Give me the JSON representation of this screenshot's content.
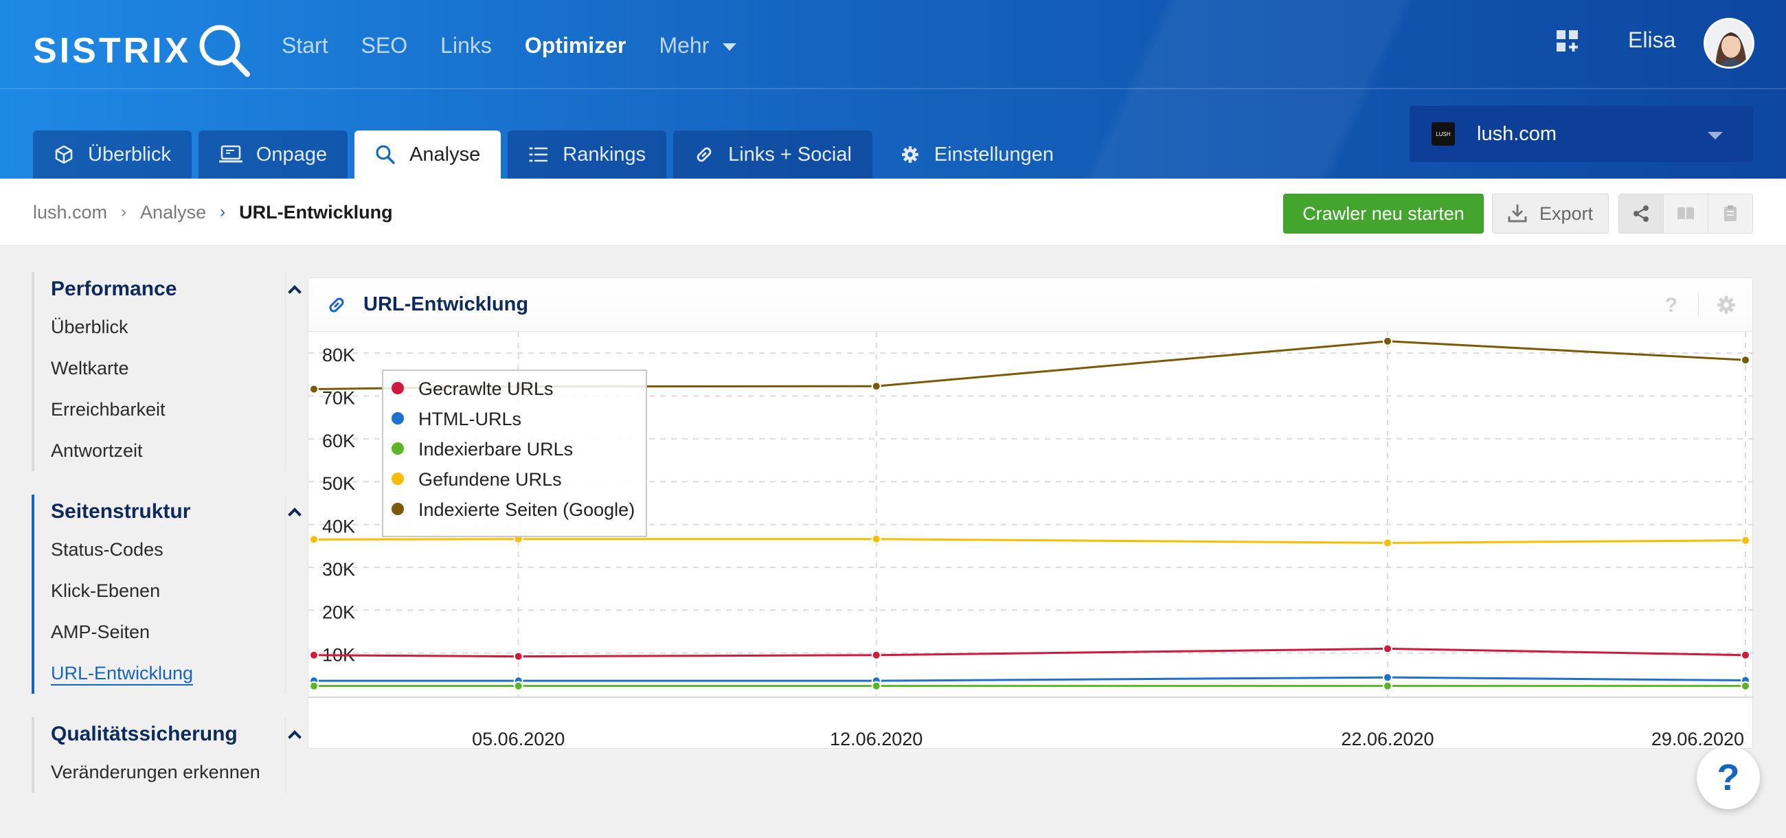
{
  "app": {
    "logo_text": "SISTRIX",
    "nav": [
      {
        "label": "Start",
        "active": false
      },
      {
        "label": "SEO",
        "active": false
      },
      {
        "label": "Links",
        "active": false
      },
      {
        "label": "Optimizer",
        "active": true
      },
      {
        "label": "Mehr",
        "active": false,
        "dropdown": true
      }
    ],
    "user": {
      "name": "Elisa"
    }
  },
  "tabs": [
    {
      "label": "Überblick",
      "icon": "cube-icon",
      "active": false
    },
    {
      "label": "Onpage",
      "icon": "monitor-icon",
      "active": false
    },
    {
      "label": "Analyse",
      "icon": "search-icon",
      "active": true
    },
    {
      "label": "Rankings",
      "icon": "list-icon",
      "active": false
    },
    {
      "label": "Links + Social",
      "icon": "link-icon",
      "active": false
    },
    {
      "label": "Einstellungen",
      "icon": "gear-icon",
      "active": false
    }
  ],
  "project_selector": {
    "favicon_text": "LUSH",
    "value": "lush.com"
  },
  "breadcrumb": [
    "lush.com",
    "Analyse",
    "URL-Entwicklung"
  ],
  "actions": {
    "restart_crawler": "Crawler neu starten",
    "export": "Export",
    "icons": [
      "share-icon",
      "book-icon",
      "notes-icon"
    ]
  },
  "sidebar": [
    {
      "title": "Performance",
      "active": false,
      "items": [
        {
          "label": "Überblick",
          "active": false
        },
        {
          "label": "Weltkarte",
          "active": false
        },
        {
          "label": "Erreichbarkeit",
          "active": false
        },
        {
          "label": "Antwortzeit",
          "active": false
        }
      ]
    },
    {
      "title": "Seitenstruktur",
      "active": true,
      "items": [
        {
          "label": "Status-Codes",
          "active": false
        },
        {
          "label": "Klick-Ebenen",
          "active": false
        },
        {
          "label": "AMP-Seiten",
          "active": false
        },
        {
          "label": "URL-Entwicklung",
          "active": true
        }
      ]
    },
    {
      "title": "Qualitätssicherung",
      "active": false,
      "items": [
        {
          "label": "Veränderungen erkennen",
          "active": false
        }
      ]
    }
  ],
  "card": {
    "title": "URL-Entwicklung",
    "icons": [
      "link-icon",
      "help-icon",
      "gear-icon"
    ]
  },
  "chart_data": {
    "type": "line",
    "x": [
      "2020-06-01",
      "2020-06-05",
      "2020-06-12",
      "2020-06-22",
      "2020-06-29"
    ],
    "x_tick_labels": [
      "05.06.2020",
      "12.06.2020",
      "22.06.2020",
      "29.06.2020"
    ],
    "x_tick_dates": [
      "2020-06-05",
      "2020-06-12",
      "2020-06-22",
      "2020-06-29"
    ],
    "xlim": [
      "2020-06-01",
      "2020-06-29"
    ],
    "ylim": [
      0,
      85000
    ],
    "y_ticks": [
      10000,
      20000,
      30000,
      40000,
      50000,
      60000,
      70000,
      80000
    ],
    "y_tick_labels": [
      "10K",
      "20K",
      "30K",
      "40K",
      "50K",
      "60K",
      "70K",
      "80K"
    ],
    "grid": true,
    "legend_position": "top-left",
    "series": [
      {
        "name": "Gecrawlte URLs",
        "color": "#d0193c",
        "values": [
          9500,
          9200,
          9500,
          11000,
          9500
        ]
      },
      {
        "name": "HTML-URLs",
        "color": "#1e6fd0",
        "values": [
          3500,
          3500,
          3500,
          4300,
          3600
        ]
      },
      {
        "name": "Indexierbare URLs",
        "color": "#5bb526",
        "values": [
          2300,
          2300,
          2300,
          2300,
          2300
        ]
      },
      {
        "name": "Gefundene URLs",
        "color": "#f7be00",
        "values": [
          36500,
          36600,
          36600,
          35700,
          36300
        ]
      },
      {
        "name": "Indexierte Seiten (Google)",
        "color": "#7b5a07",
        "values": [
          71600,
          72200,
          72300,
          82800,
          78400
        ]
      }
    ]
  },
  "help_button": "?"
}
